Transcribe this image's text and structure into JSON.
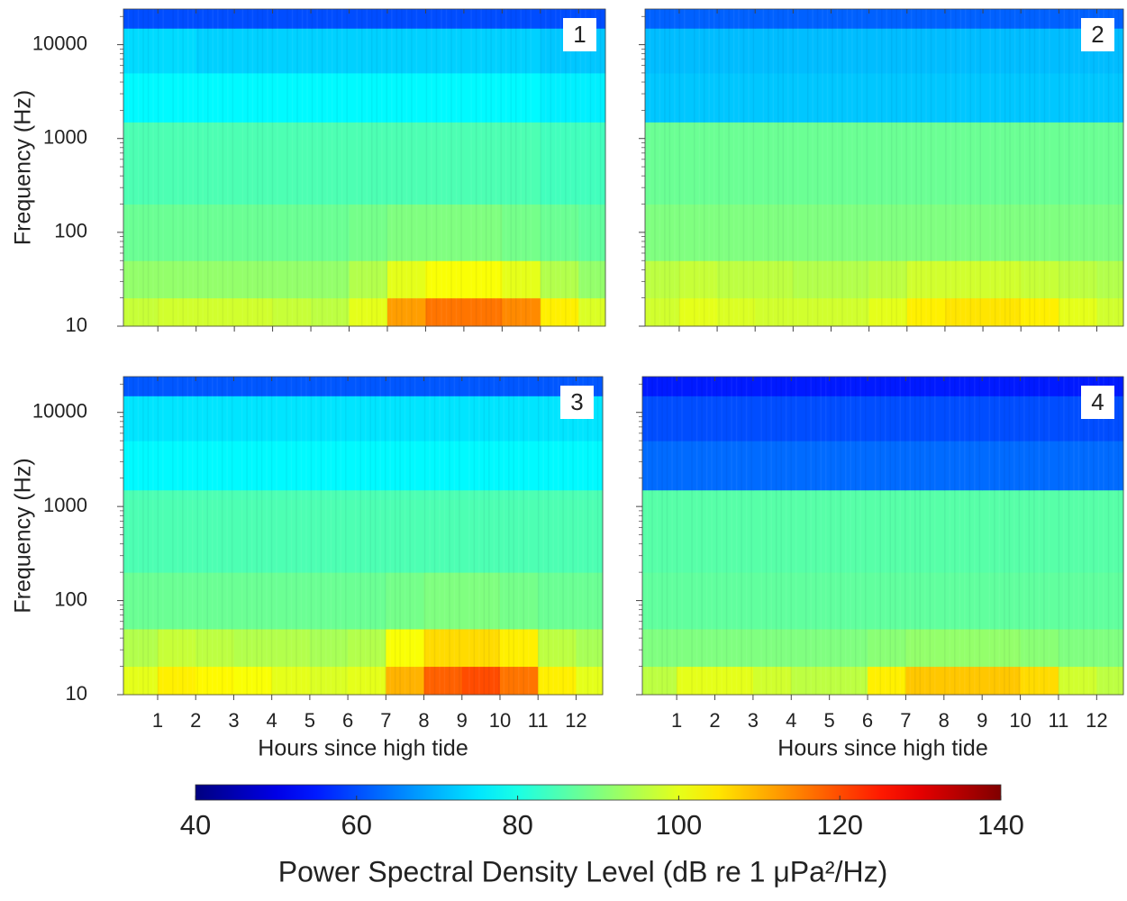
{
  "chart_data": [
    {
      "type": "heatmap",
      "label": "1",
      "ylabel": "Frequency (Hz)",
      "ylog": true,
      "show_xtick_labels": false,
      "show_ytick_labels": true,
      "x_edges": [
        0.1,
        1,
        2,
        3,
        4,
        5,
        6,
        7,
        8,
        9,
        10,
        11,
        12,
        12.7
      ],
      "y_edges": [
        10,
        20,
        50,
        200,
        1500,
        5000,
        15000,
        24000
      ],
      "xlim": [
        0.1,
        12.7
      ],
      "ylim": [
        10,
        24000
      ],
      "xticks": [
        1,
        2,
        3,
        4,
        5,
        6,
        7,
        8,
        9,
        10,
        11,
        12
      ],
      "yticks": [
        10,
        100,
        1000,
        10000
      ],
      "values": [
        [
          97,
          98,
          98,
          98,
          97,
          96,
          100,
          112,
          116,
          116,
          114,
          104,
          99
        ],
        [
          92,
          92,
          92,
          92,
          92,
          92,
          95,
          100,
          102,
          102,
          100,
          95,
          92
        ],
        [
          88,
          88,
          88,
          88,
          88,
          88,
          89,
          90,
          90,
          90,
          89,
          88,
          87
        ],
        [
          85,
          85,
          85,
          85,
          85,
          85,
          85,
          85,
          85,
          85,
          85,
          84,
          84
        ],
        [
          77,
          77,
          77,
          77,
          77,
          77,
          77,
          77,
          77,
          77,
          77,
          76,
          76
        ],
        [
          74,
          74,
          73,
          73,
          73,
          73,
          73,
          73,
          73,
          73,
          73,
          72,
          72
        ],
        [
          60,
          60,
          60,
          60,
          60,
          60,
          60,
          60,
          60,
          60,
          60,
          60,
          60
        ]
      ]
    },
    {
      "type": "heatmap",
      "label": "2",
      "ylog": true,
      "show_xtick_labels": false,
      "show_ytick_labels": false,
      "x_edges": [
        0.1,
        1,
        2,
        3,
        4,
        5,
        6,
        7,
        8,
        9,
        10,
        11,
        12,
        12.7
      ],
      "y_edges": [
        10,
        20,
        50,
        200,
        1500,
        5000,
        15000,
        24000
      ],
      "xlim": [
        0.1,
        12.7
      ],
      "ylim": [
        10,
        24000
      ],
      "xticks": [
        1,
        2,
        3,
        4,
        5,
        6,
        7,
        8,
        9,
        10,
        11,
        12
      ],
      "yticks": [
        10,
        100,
        1000,
        10000
      ],
      "values": [
        [
          98,
          100,
          99,
          98,
          98,
          98,
          100,
          104,
          105,
          105,
          104,
          100,
          98
        ],
        [
          96,
          97,
          96,
          96,
          95,
          95,
          96,
          98,
          98,
          98,
          97,
          96,
          95
        ],
        [
          90,
          90,
          90,
          90,
          90,
          90,
          90,
          90,
          90,
          90,
          90,
          90,
          90
        ],
        [
          88,
          88,
          88,
          88,
          88,
          88,
          88,
          88,
          88,
          88,
          88,
          88,
          88
        ],
        [
          72,
          72,
          72,
          72,
          72,
          72,
          72,
          72,
          72,
          72,
          72,
          72,
          72
        ],
        [
          71,
          71,
          71,
          71,
          71,
          71,
          71,
          71,
          71,
          71,
          71,
          71,
          71
        ],
        [
          62,
          62,
          62,
          62,
          62,
          62,
          62,
          62,
          62,
          62,
          62,
          62,
          62
        ]
      ]
    },
    {
      "type": "heatmap",
      "label": "3",
      "ylabel": "Frequency (Hz)",
      "xlabel": "Hours since high tide",
      "ylog": true,
      "show_xtick_labels": true,
      "show_ytick_labels": true,
      "x_edges": [
        0.1,
        1,
        2,
        3,
        4,
        5,
        6,
        7,
        8,
        9,
        10,
        11,
        12,
        12.7
      ],
      "y_edges": [
        10,
        20,
        50,
        200,
        1500,
        5000,
        15000,
        24000
      ],
      "xlim": [
        0.1,
        12.7
      ],
      "ylim": [
        10,
        24000
      ],
      "xticks": [
        1,
        2,
        3,
        4,
        5,
        6,
        7,
        8,
        9,
        10,
        11,
        12
      ],
      "yticks": [
        10,
        100,
        1000,
        10000
      ],
      "values": [
        [
          100,
          104,
          103,
          102,
          100,
          99,
          100,
          110,
          118,
          120,
          116,
          104,
          100
        ],
        [
          95,
          97,
          96,
          95,
          95,
          94,
          95,
          102,
          106,
          106,
          104,
          96,
          94
        ],
        [
          88,
          88,
          88,
          88,
          88,
          88,
          88,
          89,
          90,
          90,
          89,
          88,
          88
        ],
        [
          85,
          85,
          85,
          85,
          85,
          85,
          85,
          85,
          85,
          85,
          85,
          85,
          85
        ],
        [
          77,
          77,
          77,
          77,
          77,
          77,
          77,
          77,
          77,
          77,
          77,
          77,
          77
        ],
        [
          75,
          75,
          75,
          75,
          75,
          75,
          75,
          75,
          75,
          75,
          75,
          75,
          75
        ],
        [
          61,
          61,
          61,
          61,
          61,
          61,
          61,
          61,
          61,
          61,
          61,
          61,
          61
        ]
      ]
    },
    {
      "type": "heatmap",
      "label": "4",
      "xlabel": "Hours since high tide",
      "ylog": true,
      "show_xtick_labels": true,
      "show_ytick_labels": false,
      "x_edges": [
        0.1,
        1,
        2,
        3,
        4,
        5,
        6,
        7,
        8,
        9,
        10,
        11,
        12,
        12.7
      ],
      "y_edges": [
        10,
        20,
        50,
        200,
        1500,
        5000,
        15000,
        24000
      ],
      "xlim": [
        0.1,
        12.7
      ],
      "ylim": [
        10,
        24000
      ],
      "xticks": [
        1,
        2,
        3,
        4,
        5,
        6,
        7,
        8,
        9,
        10,
        11,
        12
      ],
      "yticks": [
        10,
        100,
        1000,
        10000
      ],
      "values": [
        [
          96,
          100,
          100,
          98,
          96,
          96,
          104,
          108,
          108,
          108,
          106,
          98,
          96
        ],
        [
          90,
          90,
          90,
          90,
          90,
          90,
          91,
          92,
          92,
          92,
          91,
          90,
          90
        ],
        [
          87,
          87,
          87,
          87,
          87,
          87,
          87,
          87,
          87,
          87,
          87,
          87,
          87
        ],
        [
          86,
          86,
          86,
          86,
          86,
          86,
          86,
          86,
          86,
          86,
          86,
          86,
          86
        ],
        [
          63,
          63,
          63,
          63,
          63,
          63,
          63,
          63,
          63,
          63,
          63,
          63,
          63
        ],
        [
          60,
          60,
          60,
          60,
          60,
          60,
          60,
          60,
          60,
          60,
          60,
          60,
          60
        ],
        [
          55,
          55,
          55,
          55,
          55,
          55,
          55,
          55,
          55,
          55,
          55,
          55,
          55
        ]
      ]
    },
    {
      "type": "colorbar",
      "colormap": "jet",
      "clim": [
        40,
        140
      ],
      "ticks": [
        40,
        60,
        80,
        100,
        120,
        140
      ],
      "label": "Power Spectral Density Level (dB re 1 μPa²/Hz)"
    }
  ]
}
